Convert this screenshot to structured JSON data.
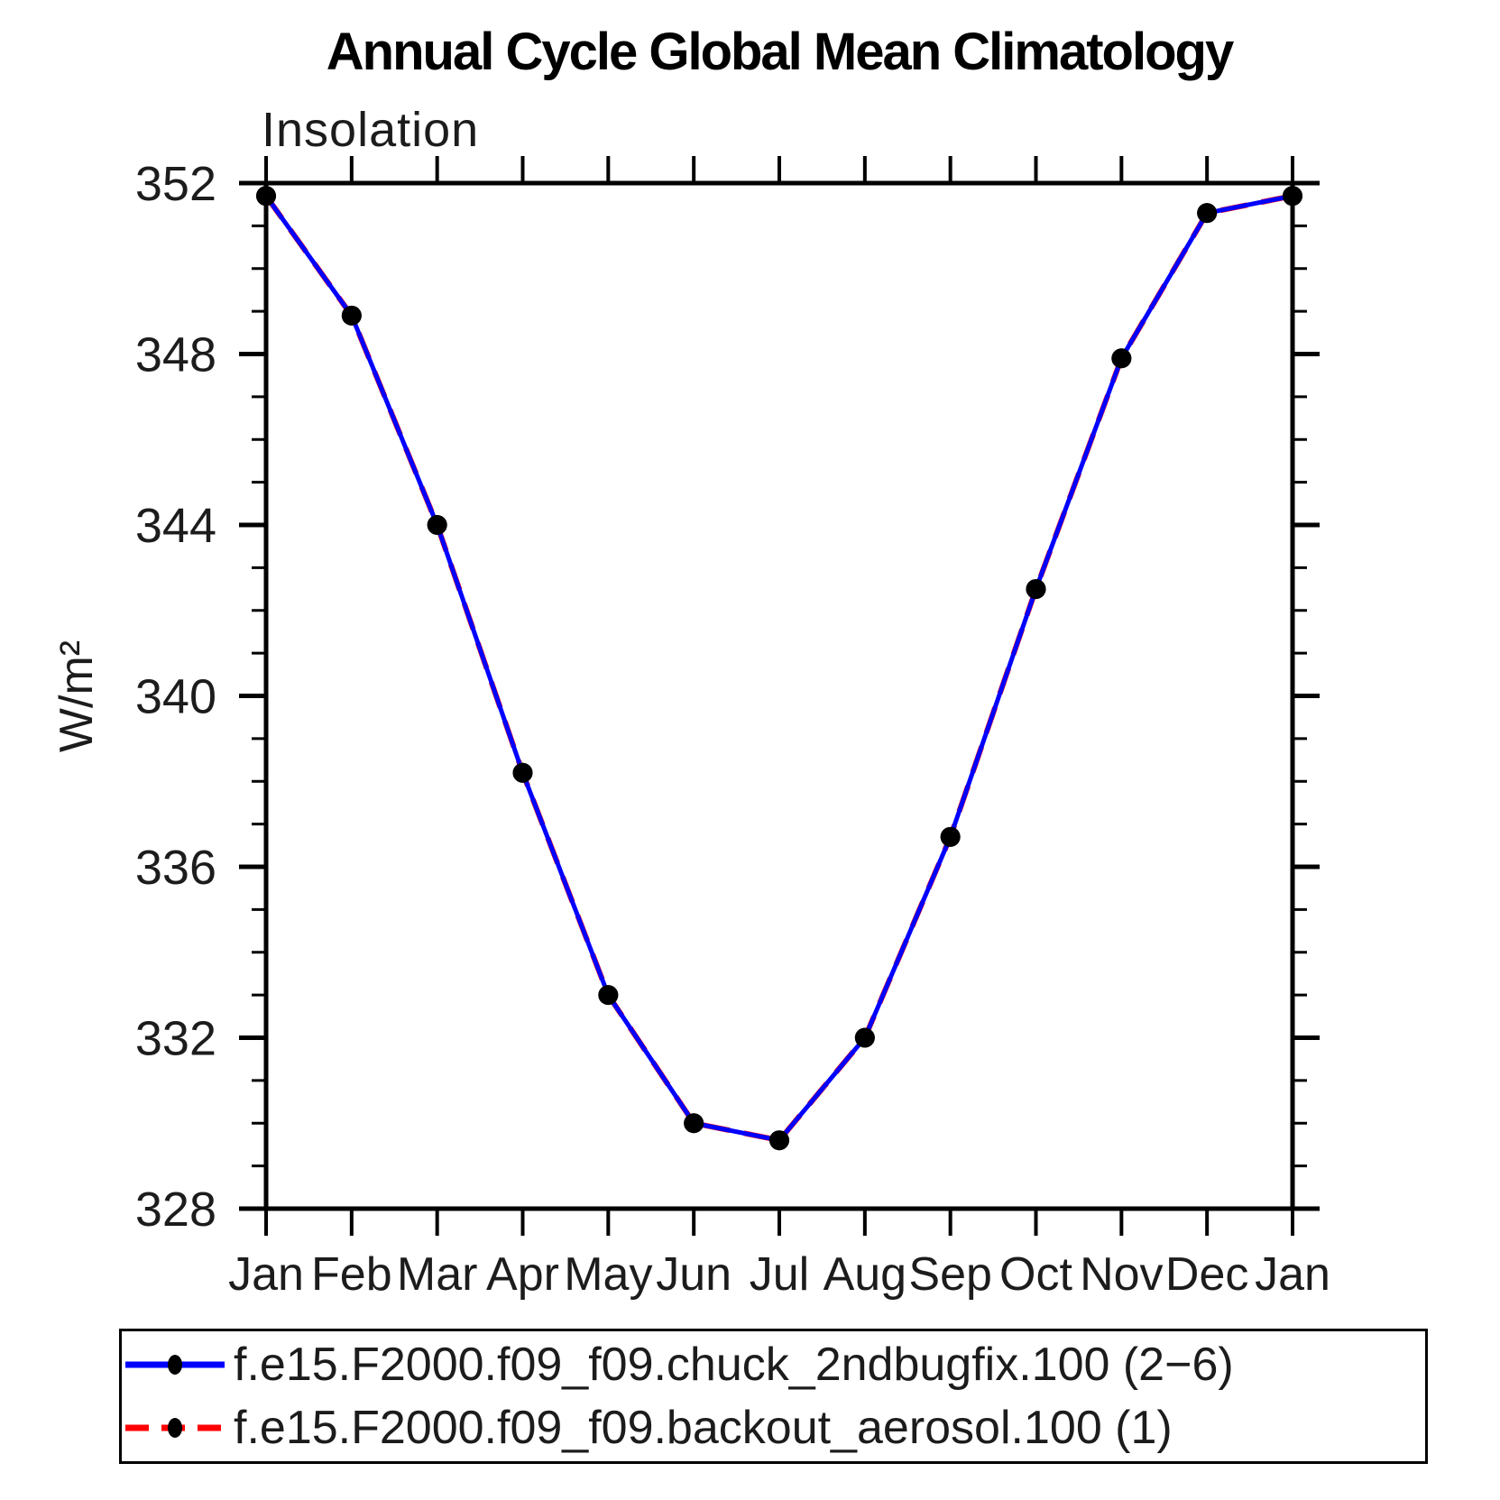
{
  "header": {
    "title": "Annual Cycle Global Mean Climatology",
    "subtitle": "Insolation"
  },
  "chart_data": {
    "type": "line",
    "title": "Annual Cycle Global Mean Climatology",
    "subtitle": "Insolation",
    "ylabel": "W/m²",
    "xlabel": "",
    "categories": [
      "Jan",
      "Feb",
      "Mar",
      "Apr",
      "May",
      "Jun",
      "Jul",
      "Aug",
      "Sep",
      "Oct",
      "Nov",
      "Dec",
      "Jan"
    ],
    "ylim": [
      328,
      352
    ],
    "ytick_major_step": 4,
    "ytick_minor_step": 1,
    "ytick_labels": [
      "328",
      "332",
      "336",
      "340",
      "344",
      "348",
      "352"
    ],
    "grid": false,
    "legend_position": "bottom-box",
    "axis_color": "#000000",
    "marker_color": "#000000",
    "series": [
      {
        "name": "f.e15.F2000.f09_f09.chuck_2ndbugfix.100 (2−6)",
        "color": "#0000ff",
        "style": "solid",
        "marker": "filled-circle",
        "values": [
          351.7,
          348.9,
          344.0,
          338.2,
          333.0,
          330.0,
          329.6,
          332.0,
          336.7,
          342.5,
          347.9,
          351.3,
          351.7
        ]
      },
      {
        "name": "f.e15.F2000.f09_f09.backout_aerosol.100 (1)",
        "color": "#ff0000",
        "style": "dashed",
        "marker": "filled-circle",
        "values": [
          351.7,
          348.9,
          344.0,
          338.2,
          333.0,
          330.0,
          329.6,
          332.0,
          336.7,
          342.5,
          347.9,
          351.3,
          351.7
        ]
      }
    ]
  }
}
